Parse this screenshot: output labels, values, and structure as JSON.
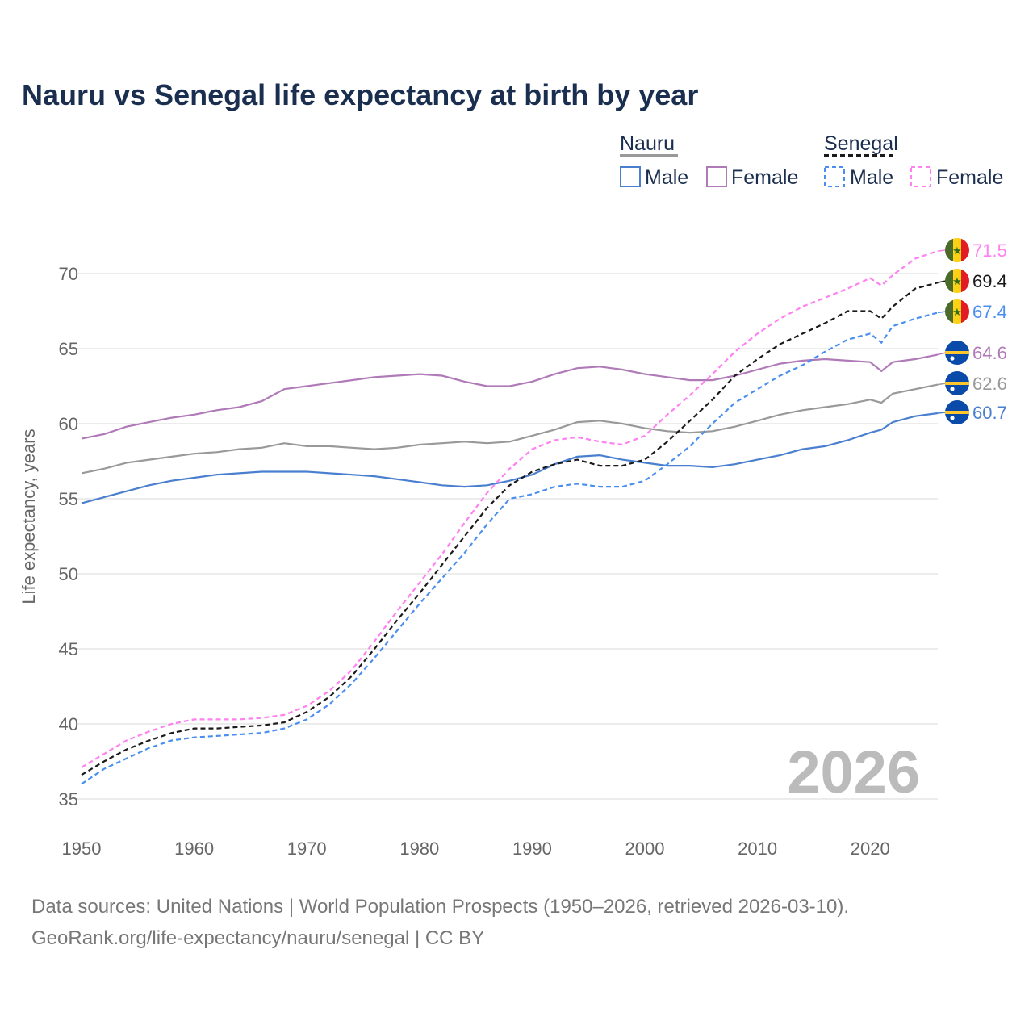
{
  "chart_data": {
    "type": "line",
    "title": "Nauru vs Senegal life expectancy at birth by year",
    "ylabel": "Life expectancy, years",
    "xlabel": "",
    "xlim": [
      1950,
      2026
    ],
    "ylim": [
      35,
      72
    ],
    "x_ticks": [
      1950,
      1960,
      1970,
      1980,
      1990,
      2000,
      2010,
      2020
    ],
    "y_ticks": [
      35,
      40,
      45,
      50,
      55,
      60,
      65,
      70
    ],
    "grid": "horizontal",
    "legend_placement": "top-right",
    "legend_groups": [
      {
        "name": "Nauru",
        "entries": [
          "Male",
          "Female"
        ],
        "style": "solid"
      },
      {
        "name": "Senegal",
        "entries": [
          "Male",
          "Female"
        ],
        "style": "dashed"
      }
    ],
    "year_watermark": "2026",
    "x": [
      1950,
      1952,
      1954,
      1956,
      1958,
      1960,
      1962,
      1964,
      1966,
      1968,
      1970,
      1972,
      1974,
      1976,
      1978,
      1980,
      1982,
      1984,
      1986,
      1988,
      1990,
      1992,
      1994,
      1996,
      1998,
      2000,
      2002,
      2004,
      2006,
      2008,
      2010,
      2012,
      2014,
      2016,
      2018,
      2020,
      2021,
      2022,
      2024,
      2026
    ],
    "series": [
      {
        "name": "Nauru Female",
        "country": "Nauru",
        "sex": "Female",
        "color": "#b07ab8",
        "dashed": false,
        "end_label": "64.6",
        "values": [
          59.0,
          59.3,
          59.8,
          60.1,
          60.4,
          60.6,
          60.9,
          61.1,
          61.5,
          62.3,
          62.5,
          62.7,
          62.9,
          63.1,
          63.2,
          63.3,
          63.2,
          62.8,
          62.5,
          62.5,
          62.8,
          63.3,
          63.7,
          63.8,
          63.6,
          63.3,
          63.1,
          62.9,
          62.9,
          63.2,
          63.6,
          64.0,
          64.2,
          64.3,
          64.2,
          64.1,
          63.5,
          64.1,
          64.3,
          64.6
        ]
      },
      {
        "name": "Nauru Total",
        "country": "Nauru",
        "sex": "Total",
        "color": "#999999",
        "dashed": false,
        "end_label": "62.6",
        "values": [
          56.7,
          57.0,
          57.4,
          57.6,
          57.8,
          58.0,
          58.1,
          58.3,
          58.4,
          58.7,
          58.5,
          58.5,
          58.4,
          58.3,
          58.4,
          58.6,
          58.7,
          58.8,
          58.7,
          58.8,
          59.2,
          59.6,
          60.1,
          60.2,
          60.0,
          59.7,
          59.5,
          59.4,
          59.5,
          59.8,
          60.2,
          60.6,
          60.9,
          61.1,
          61.3,
          61.6,
          61.4,
          62.0,
          62.3,
          62.6
        ]
      },
      {
        "name": "Nauru Male",
        "country": "Nauru",
        "sex": "Male",
        "color": "#4a7fcf",
        "dashed": false,
        "end_label": "60.7",
        "values": [
          54.7,
          55.1,
          55.5,
          55.9,
          56.2,
          56.4,
          56.6,
          56.7,
          56.8,
          56.8,
          56.8,
          56.7,
          56.6,
          56.5,
          56.3,
          56.1,
          55.9,
          55.8,
          55.9,
          56.2,
          56.6,
          57.3,
          57.8,
          57.9,
          57.6,
          57.4,
          57.2,
          57.2,
          57.1,
          57.3,
          57.6,
          57.9,
          58.3,
          58.5,
          58.9,
          59.4,
          59.6,
          60.1,
          60.5,
          60.7
        ]
      },
      {
        "name": "Senegal Female",
        "country": "Senegal",
        "sex": "Female",
        "color": "#ff80f0",
        "dashed": true,
        "end_label": "71.5",
        "values": [
          37.1,
          38.0,
          38.9,
          39.5,
          40.0,
          40.3,
          40.3,
          40.3,
          40.4,
          40.6,
          41.2,
          42.2,
          43.6,
          45.5,
          47.5,
          49.4,
          51.3,
          53.4,
          55.4,
          57.0,
          58.3,
          58.9,
          59.1,
          58.8,
          58.6,
          59.2,
          60.6,
          61.9,
          63.3,
          64.8,
          66.0,
          67.0,
          67.8,
          68.4,
          69.0,
          69.7,
          69.2,
          69.9,
          71.0,
          71.5
        ]
      },
      {
        "name": "Senegal Total",
        "country": "Senegal",
        "sex": "Total",
        "color": "#1a1a1a",
        "dashed": true,
        "end_label": "69.4",
        "values": [
          36.6,
          37.5,
          38.3,
          38.9,
          39.4,
          39.7,
          39.7,
          39.8,
          39.9,
          40.1,
          40.8,
          41.8,
          43.2,
          45.0,
          46.9,
          48.7,
          50.6,
          52.5,
          54.4,
          55.9,
          56.8,
          57.3,
          57.6,
          57.2,
          57.2,
          57.6,
          58.8,
          60.2,
          61.6,
          63.2,
          64.3,
          65.3,
          66.0,
          66.7,
          67.5,
          67.5,
          67.0,
          67.8,
          69.0,
          69.4
        ]
      },
      {
        "name": "Senegal Male",
        "country": "Senegal",
        "sex": "Male",
        "color": "#4a8ff0",
        "dashed": true,
        "end_label": "67.4",
        "values": [
          36.0,
          37.0,
          37.7,
          38.4,
          38.9,
          39.1,
          39.2,
          39.3,
          39.4,
          39.7,
          40.3,
          41.3,
          42.7,
          44.4,
          46.2,
          48.0,
          49.7,
          51.4,
          53.3,
          55.0,
          55.3,
          55.8,
          56.0,
          55.8,
          55.8,
          56.2,
          57.3,
          58.5,
          60.0,
          61.4,
          62.3,
          63.2,
          63.9,
          64.8,
          65.6,
          66.0,
          65.4,
          66.5,
          67.0,
          67.4
        ]
      }
    ]
  },
  "legend": {
    "nauru": "Nauru",
    "senegal": "Senegal",
    "male": "Male",
    "female": "Female"
  },
  "footer": {
    "line1": "Data sources: United Nations | World Population Prospects (1950–2026, retrieved 2026-03-10).",
    "line2": "GeoRank.org/life-expectancy/nauru/senegal | CC BY"
  }
}
